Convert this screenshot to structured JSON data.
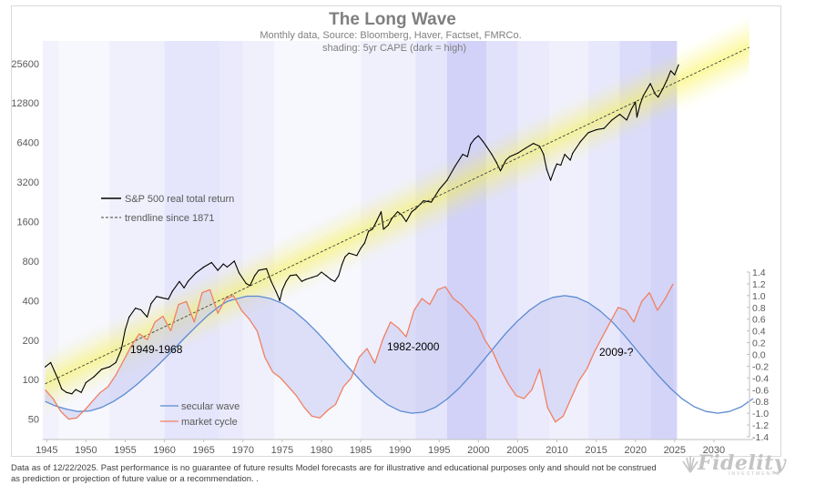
{
  "chart_data": {
    "type": "line",
    "title": "The Long Wave",
    "subtitle_1": "Monthly data,  Source: Bloomberg, Haver, Factset, FMRCo.",
    "subtitle_2": "shading: 5yr CAPE (dark = high)",
    "x_range": [
      1944.5,
      2035
    ],
    "x_ticks": [
      "1945",
      "1950",
      "1955",
      "1960",
      "1965",
      "1970",
      "1975",
      "1980",
      "1985",
      "1990",
      "1995",
      "2000",
      "2005",
      "2010",
      "2015",
      "2020",
      "2025",
      "2030"
    ],
    "y_left_scale": "log",
    "y_left_range": [
      35,
      38000
    ],
    "y_left_ticks": [
      "50",
      "100",
      "200",
      "400",
      "800",
      "1600",
      "3200",
      "6400",
      "12800",
      "25600"
    ],
    "y_right_range": [
      -1.4,
      1.4
    ],
    "y_right_ticks": [
      "1.4",
      "1.2",
      "1.0",
      "0.8",
      "0.6",
      "0.4",
      "0.2",
      "0.0",
      "-0.2",
      "-0.4",
      "-0.6",
      "-0.8",
      "-1.0",
      "-1.2",
      "-1.4"
    ],
    "grid": false,
    "legend_upper": "left",
    "legend_lower": "bottom-left",
    "legend": {
      "sp500": "S&P 500 real total return",
      "trend": "trendline since 1871",
      "secular": "secular wave",
      "market": "market cycle"
    },
    "annotations": [
      {
        "text": "1949-1968",
        "x": 1949.3,
        "y_right": 0.05
      },
      {
        "text": "1982-2000",
        "x": 1982.2,
        "y_right": 0.1
      },
      {
        "text": "2009-?",
        "x": 2009.3,
        "y_right": 0.0
      }
    ],
    "series": [
      {
        "name": "S&P 500 real total return",
        "axis": "left",
        "color": "#000000",
        "x": [
          1944.8,
          1945.5,
          1946.4,
          1946.9,
          1947.5,
          1948.2,
          1948.7,
          1949.4,
          1950,
          1951,
          1952,
          1953,
          1953.8,
          1954.5,
          1955,
          1955.5,
          1956.3,
          1957,
          1957.8,
          1958.3,
          1959,
          1959.7,
          1960.5,
          1961,
          1961.9,
          1962.5,
          1963,
          1964,
          1965,
          1966,
          1966.8,
          1967.5,
          1968,
          1968.9,
          1969.5,
          1970.4,
          1970.9,
          1971.5,
          1972,
          1973,
          1973.6,
          1974.2,
          1974.7,
          1975,
          1975.5,
          1976,
          1976.8,
          1977.5,
          1978,
          1978.8,
          1979.5,
          1980,
          1980.6,
          1981.2,
          1981.7,
          1982.2,
          1982.6,
          1983,
          1983.5,
          1984,
          1984.5,
          1985,
          1985.5,
          1986,
          1986.5,
          1987,
          1987.6,
          1987.9,
          1988.5,
          1989,
          1989.7,
          1990.2,
          1990.8,
          1991.5,
          1992,
          1993,
          1994,
          1995,
          1996,
          1997,
          1998,
          1998.6,
          1999,
          1999.5,
          2000,
          2000.6,
          2001,
          2001.7,
          2002.3,
          2002.8,
          2003,
          2003.5,
          2004,
          2005,
          2006,
          2007,
          2007.8,
          2008.3,
          2008.7,
          2009.2,
          2009.7,
          2010,
          2010.5,
          2011,
          2011.7,
          2012,
          2013,
          2014,
          2015,
          2016,
          2017,
          2018,
          2018.9,
          2019.5,
          2020,
          2020.2,
          2020.6,
          2021,
          2021.9,
          2022.5,
          2022.9,
          2023.5,
          2024,
          2024.5,
          2025,
          2025.5
        ],
        "y": [
          125,
          135,
          102,
          85,
          80,
          78,
          84,
          80,
          95,
          105,
          120,
          125,
          135,
          170,
          240,
          300,
          350,
          340,
          300,
          380,
          430,
          420,
          410,
          470,
          560,
          500,
          560,
          650,
          720,
          780,
          680,
          760,
          720,
          800,
          650,
          540,
          520,
          620,
          680,
          700,
          560,
          470,
          400,
          480,
          560,
          620,
          630,
          560,
          580,
          600,
          620,
          660,
          620,
          580,
          560,
          620,
          750,
          860,
          920,
          900,
          880,
          1000,
          1100,
          1350,
          1400,
          1600,
          1900,
          1400,
          1500,
          1700,
          1900,
          1800,
          1600,
          1900,
          2000,
          2300,
          2250,
          2800,
          3300,
          4200,
          5200,
          5000,
          6200,
          6800,
          7200,
          6500,
          6000,
          5200,
          4500,
          3900,
          4100,
          4700,
          5000,
          5300,
          5800,
          6300,
          6000,
          5200,
          4000,
          3300,
          4000,
          4400,
          4300,
          5200,
          4700,
          5300,
          6500,
          7600,
          8000,
          8200,
          9500,
          10500,
          9500,
          11500,
          13000,
          10000,
          12500,
          14500,
          18000,
          15000,
          14200,
          16500,
          19000,
          22500,
          21000,
          25000
        ]
      },
      {
        "name": "trendline since 1871",
        "axis": "left",
        "color": "#404040",
        "x": [
          1944.8,
          2034.5
        ],
        "y": [
          93,
          34000
        ]
      },
      {
        "name": "secular wave",
        "axis": "right",
        "color": "#5b8bd0",
        "x": [
          1944.8,
          1946,
          1947.5,
          1949,
          1950.5,
          1952,
          1953.5,
          1955,
          1956.5,
          1958,
          1959.5,
          1961,
          1962.5,
          1964,
          1965.5,
          1967,
          1968,
          1969,
          1970.5,
          1972,
          1973.5,
          1975,
          1976.5,
          1978,
          1979.5,
          1981,
          1982.5,
          1984,
          1985.5,
          1987,
          1988.5,
          1990,
          1991.5,
          1993,
          1994.5,
          1996,
          1997.5,
          1999,
          2000.5,
          2002,
          2003.5,
          2005,
          2006.5,
          2008,
          2009.5,
          2011,
          2012.5,
          2014,
          2015.5,
          2017,
          2018.5,
          2020,
          2021.5,
          2023,
          2024.5,
          2026,
          2027.5,
          2029,
          2030.5,
          2032,
          2033.5,
          2035
        ],
        "y": [
          -0.8,
          -0.87,
          -0.93,
          -0.97,
          -0.96,
          -0.9,
          -0.8,
          -0.67,
          -0.51,
          -0.33,
          -0.14,
          0.06,
          0.27,
          0.47,
          0.66,
          0.82,
          0.9,
          0.94,
          0.99,
          0.99,
          0.95,
          0.87,
          0.74,
          0.57,
          0.37,
          0.15,
          -0.08,
          -0.3,
          -0.52,
          -0.71,
          -0.86,
          -0.96,
          -1.0,
          -0.98,
          -0.9,
          -0.76,
          -0.58,
          -0.36,
          -0.12,
          0.12,
          0.36,
          0.57,
          0.75,
          0.89,
          0.97,
          1.0,
          0.97,
          0.88,
          0.74,
          0.56,
          0.34,
          0.1,
          -0.14,
          -0.37,
          -0.58,
          -0.76,
          -0.89,
          -0.97,
          -1.0,
          -0.97,
          -0.89,
          -0.75
        ]
      },
      {
        "name": "market cycle",
        "axis": "right",
        "color": "#f08060",
        "x": [
          1944.8,
          1945.8,
          1946.8,
          1947.8,
          1948.8,
          1949.8,
          1950.8,
          1951.8,
          1952.8,
          1953.8,
          1954.8,
          1955.8,
          1956.8,
          1957.8,
          1958.8,
          1959.8,
          1960.8,
          1961.8,
          1962.8,
          1963.8,
          1964.8,
          1965.8,
          1966.8,
          1967.8,
          1968.8,
          1969.8,
          1970.8,
          1971.8,
          1972.8,
          1973.8,
          1974.8,
          1975.8,
          1976.8,
          1977.8,
          1978.8,
          1979.8,
          1980.8,
          1981.8,
          1982.8,
          1983.8,
          1984.8,
          1985.8,
          1986.8,
          1987.8,
          1988.8,
          1989.8,
          1990.8,
          1991.8,
          1992.8,
          1993.8,
          1994.8,
          1995.8,
          1996.8,
          1997.8,
          1998.8,
          1999.8,
          2000.8,
          2001.8,
          2002.8,
          2003.8,
          2004.8,
          2005.8,
          2006.8,
          2007.8,
          2008.8,
          2009.8,
          2010.8,
          2011.8,
          2012.8,
          2013.8,
          2014.8,
          2015.8,
          2016.8,
          2017.8,
          2018.8,
          2019.8,
          2020.8,
          2021.8,
          2022.8,
          2023.8,
          2024.8
        ],
        "y": [
          -0.6,
          -0.75,
          -0.97,
          -1.1,
          -1.08,
          -0.95,
          -0.8,
          -0.65,
          -0.55,
          -0.35,
          -0.1,
          0.15,
          0.35,
          0.25,
          0.55,
          0.65,
          0.4,
          0.85,
          0.9,
          0.55,
          1.05,
          1.1,
          0.7,
          0.95,
          1.0,
          0.75,
          0.6,
          0.4,
          -0.05,
          -0.3,
          -0.4,
          -0.55,
          -0.7,
          -0.9,
          -1.05,
          -1.08,
          -0.95,
          -0.85,
          -0.55,
          -0.4,
          -0.05,
          0.1,
          -0.15,
          0.25,
          0.55,
          0.45,
          0.3,
          0.75,
          0.95,
          0.85,
          1.1,
          1.15,
          0.95,
          0.85,
          0.7,
          0.55,
          0.25,
          0.05,
          -0.25,
          -0.5,
          -0.7,
          -0.75,
          -0.6,
          -0.25,
          -0.9,
          -1.15,
          -1.05,
          -0.75,
          -0.45,
          -0.25,
          0.05,
          0.3,
          0.55,
          0.8,
          0.75,
          0.55,
          0.9,
          1.05,
          0.75,
          0.95,
          1.2
        ]
      }
    ],
    "cape_shading_bands": [
      {
        "x": [
          1944.5,
          1946.5
        ],
        "intensity": 0.15
      },
      {
        "x": [
          1946.5,
          1953
        ],
        "intensity": 0.05
      },
      {
        "x": [
          1953,
          1960
        ],
        "intensity": 0.2
      },
      {
        "x": [
          1960,
          1967
        ],
        "intensity": 0.45
      },
      {
        "x": [
          1967,
          1970
        ],
        "intensity": 0.35
      },
      {
        "x": [
          1970,
          1974
        ],
        "intensity": 0.2
      },
      {
        "x": [
          1974,
          1985
        ],
        "intensity": 0.05
      },
      {
        "x": [
          1985,
          1992
        ],
        "intensity": 0.2
      },
      {
        "x": [
          1992,
          1996
        ],
        "intensity": 0.45
      },
      {
        "x": [
          1996,
          2001
        ],
        "intensity": 0.9
      },
      {
        "x": [
          2001,
          2005
        ],
        "intensity": 0.55
      },
      {
        "x": [
          2005,
          2009
        ],
        "intensity": 0.35
      },
      {
        "x": [
          2009,
          2014
        ],
        "intensity": 0.2
      },
      {
        "x": [
          2014,
          2018
        ],
        "intensity": 0.4
      },
      {
        "x": [
          2018,
          2022
        ],
        "intensity": 0.7
      },
      {
        "x": [
          2022,
          2025.3
        ],
        "intensity": 0.85
      }
    ]
  },
  "footnote": "Data as of 12/22/2025. Past performance is no guarantee of future results Model forecasts are for illustrative and educational purposes only and should not be construed as prediction or projection of future value or a recommendation. .",
  "logo": {
    "brand": "Fidelity",
    "sub": "INVESTMENTS"
  }
}
